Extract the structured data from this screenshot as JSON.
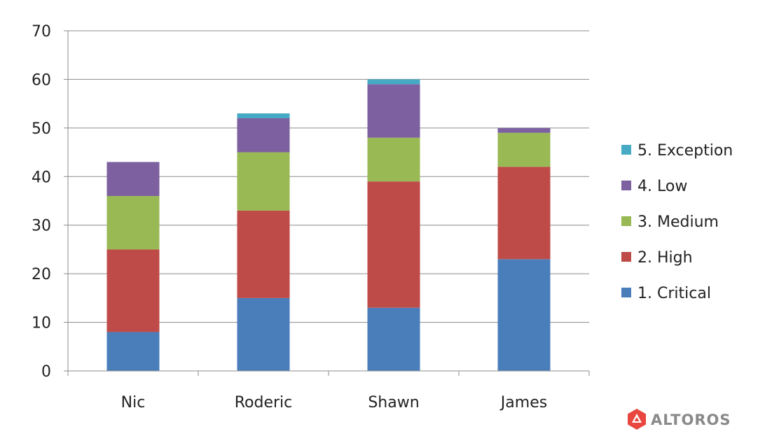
{
  "chart_data": {
    "type": "bar",
    "stacked": true,
    "categories": [
      "Nic",
      "Roderic",
      "Shawn",
      "James"
    ],
    "series": [
      {
        "name": "1. Critical",
        "color": "#4a7ebb",
        "values": [
          8,
          15,
          13,
          23
        ]
      },
      {
        "name": "2. High",
        "color": "#be4b48",
        "values": [
          17,
          18,
          26,
          19
        ]
      },
      {
        "name": "3. Medium",
        "color": "#98b954",
        "values": [
          11,
          12,
          9,
          7
        ]
      },
      {
        "name": "4. Low",
        "color": "#7d60a0",
        "values": [
          7,
          7,
          11,
          1
        ]
      },
      {
        "name": "5. Exception",
        "color": "#46aac5",
        "values": [
          0,
          1,
          1,
          0
        ]
      }
    ],
    "ylim": [
      0,
      70
    ],
    "yticks": [
      "0",
      "10",
      "20",
      "30",
      "40",
      "50",
      "60",
      "70"
    ],
    "grid": true,
    "legend_position": "right",
    "title": "",
    "xlabel": "",
    "ylabel": ""
  },
  "logo": {
    "text": "ALTOROS",
    "color": "#8a8a8a",
    "accent": "#e8463f"
  }
}
